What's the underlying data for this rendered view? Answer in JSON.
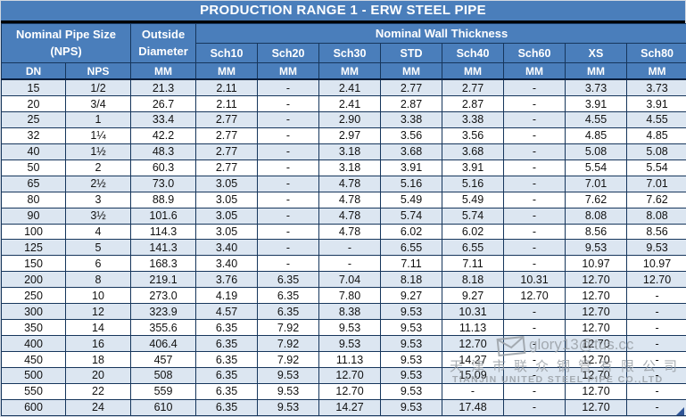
{
  "title": "PRODUCTION RANGE 1 - ERW STEEL PIPE",
  "header": {
    "nps_group_line1": "Nominal Pipe Size",
    "nps_group_line2": "(NPS)",
    "od_line1": "Outside",
    "od_line2": "Diameter",
    "nwt_group": "Nominal Wall Thickness",
    "schedules": [
      "Sch10",
      "Sch20",
      "Sch30",
      "STD",
      "Sch40",
      "Sch60",
      "XS",
      "Sch80"
    ]
  },
  "table": {
    "units": [
      "DN",
      "NPS",
      "MM",
      "MM",
      "MM",
      "MM",
      "MM",
      "MM",
      "MM",
      "MM",
      "MM"
    ],
    "rows": [
      [
        "15",
        "1/2",
        "21.3",
        "2.11",
        "-",
        "2.41",
        "2.77",
        "2.77",
        "-",
        "3.73",
        "3.73"
      ],
      [
        "20",
        "3/4",
        "26.7",
        "2.11",
        "-",
        "2.41",
        "2.87",
        "2.87",
        "-",
        "3.91",
        "3.91"
      ],
      [
        "25",
        "1",
        "33.4",
        "2.77",
        "-",
        "2.90",
        "3.38",
        "3.38",
        "-",
        "4.55",
        "4.55"
      ],
      [
        "32",
        "1¼",
        "42.2",
        "2.77",
        "-",
        "2.97",
        "3.56",
        "3.56",
        "-",
        "4.85",
        "4.85"
      ],
      [
        "40",
        "1½",
        "48.3",
        "2.77",
        "-",
        "3.18",
        "3.68",
        "3.68",
        "-",
        "5.08",
        "5.08"
      ],
      [
        "50",
        "2",
        "60.3",
        "2.77",
        "-",
        "3.18",
        "3.91",
        "3.91",
        "-",
        "5.54",
        "5.54"
      ],
      [
        "65",
        "2½",
        "73.0",
        "3.05",
        "-",
        "4.78",
        "5.16",
        "5.16",
        "-",
        "7.01",
        "7.01"
      ],
      [
        "80",
        "3",
        "88.9",
        "3.05",
        "-",
        "4.78",
        "5.49",
        "5.49",
        "-",
        "7.62",
        "7.62"
      ],
      [
        "90",
        "3½",
        "101.6",
        "3.05",
        "-",
        "4.78",
        "5.74",
        "5.74",
        "-",
        "8.08",
        "8.08"
      ],
      [
        "100",
        "4",
        "114.3",
        "3.05",
        "-",
        "4.78",
        "6.02",
        "6.02",
        "-",
        "8.56",
        "8.56"
      ],
      [
        "125",
        "5",
        "141.3",
        "3.40",
        "-",
        "-",
        "6.55",
        "6.55",
        "-",
        "9.53",
        "9.53"
      ],
      [
        "150",
        "6",
        "168.3",
        "3.40",
        "-",
        "-",
        "7.11",
        "7.11",
        "-",
        "10.97",
        "10.97"
      ],
      [
        "200",
        "8",
        "219.1",
        "3.76",
        "6.35",
        "7.04",
        "8.18",
        "8.18",
        "10.31",
        "12.70",
        "12.70"
      ],
      [
        "250",
        "10",
        "273.0",
        "4.19",
        "6.35",
        "7.80",
        "9.27",
        "9.27",
        "12.70",
        "12.70",
        "-"
      ],
      [
        "300",
        "12",
        "323.9",
        "4.57",
        "6.35",
        "8.38",
        "9.53",
        "10.31",
        "-",
        "12.70",
        "-"
      ],
      [
        "350",
        "14",
        "355.6",
        "6.35",
        "7.92",
        "9.53",
        "9.53",
        "11.13",
        "-",
        "12.70",
        "-"
      ],
      [
        "400",
        "16",
        "406.4",
        "6.35",
        "7.92",
        "9.53",
        "9.53",
        "12.70",
        "-",
        "12.70",
        "-"
      ],
      [
        "450",
        "18",
        "457",
        "6.35",
        "7.92",
        "11.13",
        "9.53",
        "14.27",
        "-",
        "12.70",
        "-"
      ],
      [
        "500",
        "20",
        "508",
        "6.35",
        "9.53",
        "12.70",
        "9.53",
        "15.09",
        "-",
        "12.70",
        "-"
      ],
      [
        "550",
        "22",
        "559",
        "6.35",
        "9.53",
        "12.70",
        "9.53",
        "-",
        "-",
        "12.70",
        "-"
      ],
      [
        "600",
        "24",
        "610",
        "6.35",
        "9.53",
        "14.27",
        "9.53",
        "17.48",
        "-",
        "12.70",
        "-"
      ]
    ]
  },
  "watermark": {
    "envelope_icon": "envelope-icon",
    "email": "glory13@tus.cc",
    "company_cn": "天津市联众钢管有限公司",
    "company_en": "TIANJIN UNITED STEEL PIPE CO.,LTD"
  },
  "colors": {
    "header_blue": "#4a7ebb",
    "row_alt_blue": "#dce6f1",
    "grid_border": "#16365c",
    "title_text": "#ffffff",
    "watermark_gray": "#9aa0a6",
    "corner_triangle": "#2f5496"
  }
}
